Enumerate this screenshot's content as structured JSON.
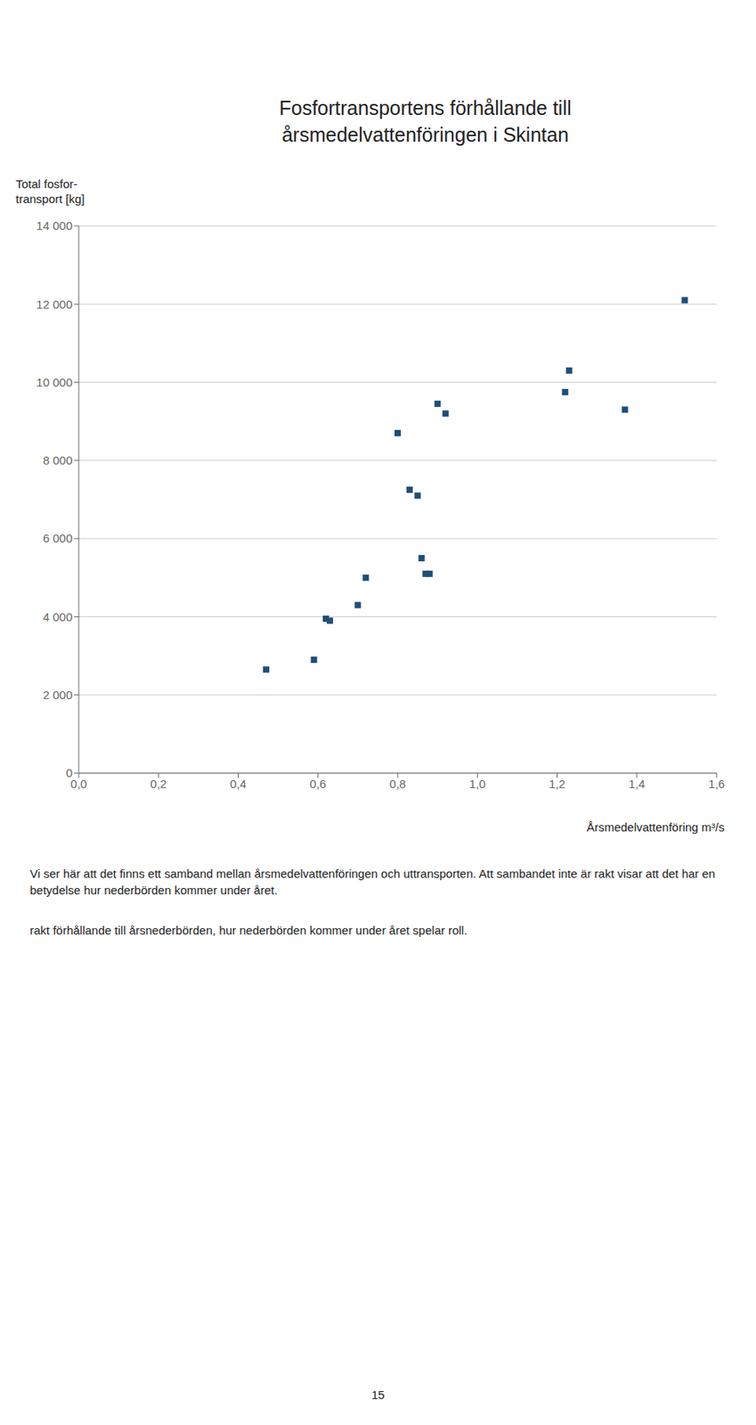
{
  "chart_data": {
    "type": "scatter",
    "title": [
      "Fosfortransportens förhållande till",
      "årsmedelvattenföringen i Skintan"
    ],
    "y_label": [
      "Total fosfor-",
      "transport [kg]"
    ],
    "x_label": "Årsmedelvattenföring m³/s",
    "x": [
      0.47,
      0.59,
      0.62,
      0.63,
      0.7,
      0.72,
      0.8,
      0.83,
      0.85,
      0.86,
      0.87,
      0.88,
      0.9,
      0.92,
      1.22,
      1.23,
      1.37,
      1.52
    ],
    "values": [
      2650,
      2900,
      3950,
      3900,
      4300,
      5000,
      8700,
      7250,
      7100,
      5500,
      5100,
      5100,
      9450,
      9200,
      9750,
      10300,
      9300,
      12100
    ],
    "color": "#1F4E79",
    "marker": "square",
    "xlim": [
      0.0,
      1.6
    ],
    "ylim": [
      0,
      14000
    ],
    "xticks": [
      {
        "value": 0.0,
        "label": "0,0"
      },
      {
        "value": 0.2,
        "label": "0,2"
      },
      {
        "value": 0.4,
        "label": "0,4"
      },
      {
        "value": 0.6,
        "label": "0,6"
      },
      {
        "value": 0.8,
        "label": "0,8"
      },
      {
        "value": 1.0,
        "label": "1,0"
      },
      {
        "value": 1.2,
        "label": "1,2"
      },
      {
        "value": 1.4,
        "label": "1,4"
      },
      {
        "value": 1.6,
        "label": "1,6"
      }
    ],
    "yticks": [
      0,
      {
        "value": 2000,
        "label": "2 000"
      },
      {
        "value": 4000,
        "label": "4 000"
      },
      {
        "value": 6000,
        "label": "6 000"
      },
      {
        "value": 8000,
        "label": "8 000"
      },
      {
        "value": 10000,
        "label": "10 000"
      },
      {
        "value": 12000,
        "label": "12 000"
      },
      {
        "value": 14000,
        "label": "14 000"
      }
    ],
    "grid": "y",
    "annotations": [
      "Vi ser här att det finns ett samband mellan årsmedelvattenföringen och uttransporten. Att sambandet inte är rakt visar att det har en betydelse hur nederbörden kommer under året.",
      "rakt förhållande till årsnederbörden, hur nederbörden kommer under året spelar roll.",
      "15"
    ]
  }
}
